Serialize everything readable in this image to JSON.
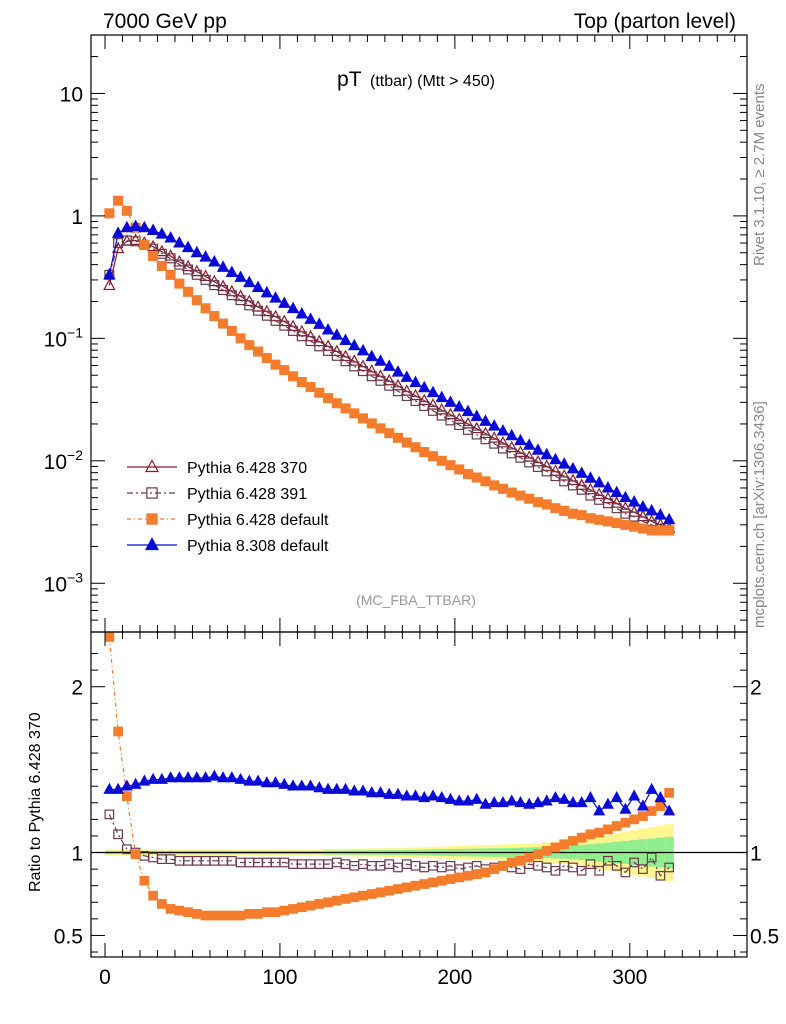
{
  "header": {
    "energy_label": "7000 GeV pp",
    "process_label": "Top (parton level)"
  },
  "side": {
    "rivet_label": "Rivet 3.1.10, ≥ 2.7M events",
    "mcplots_label": "mcplots.cern.ch [arXiv:1306.3436]"
  },
  "colors": {
    "p370": "#8b1a2b",
    "p391": "#6b3a4e",
    "pdef": "#f47c2c",
    "p8": "#0a0ad8",
    "band_green": "#90ee90",
    "band_yellow": "#fff68f"
  },
  "chart_data": [
    {
      "type": "line",
      "title_main": "pT",
      "title_sub": "(ttbar) (Mtt > 450)",
      "watermark": "(MC_FBA_TTBAR)",
      "yscale": "log",
      "xlim": [
        -8,
        367
      ],
      "ylim": [
        0.0004,
        30
      ],
      "y_ticks": [
        {
          "value": 10,
          "label": "10"
        },
        {
          "value": 1,
          "label": "1"
        },
        {
          "value": 0.1,
          "base": "10",
          "exp": "−1"
        },
        {
          "value": 0.01,
          "base": "10",
          "exp": "−2"
        },
        {
          "value": 0.001,
          "base": "10",
          "exp": "−3"
        }
      ],
      "legend_position": "bottom-left",
      "legend": [
        {
          "key": "p370",
          "label": "Pythia 6.428 370"
        },
        {
          "key": "p391",
          "label": "Pythia 6.428 391"
        },
        {
          "key": "pdef",
          "label": "Pythia 6.428 default"
        },
        {
          "key": "p8",
          "label": "Pythia 8.308 default"
        }
      ],
      "series": [
        {
          "key": "p370",
          "name": "Pythia 6.428 370",
          "x_start": 2.5,
          "x_step": 5,
          "values": [
            0.27,
            0.54,
            0.62,
            0.63,
            0.6,
            0.56,
            0.51,
            0.47,
            0.42,
            0.385,
            0.35,
            0.32,
            0.29,
            0.265,
            0.24,
            0.22,
            0.2,
            0.18,
            0.165,
            0.15,
            0.137,
            0.125,
            0.113,
            0.103,
            0.094,
            0.086,
            0.078,
            0.071,
            0.065,
            0.059,
            0.054,
            0.049,
            0.045,
            0.041,
            0.037,
            0.034,
            0.031,
            0.0285,
            0.026,
            0.0238,
            0.0218,
            0.02,
            0.0183,
            0.0167,
            0.0153,
            0.014,
            0.0128,
            0.0117,
            0.0107,
            0.0098,
            0.009,
            0.0082,
            0.0075,
            0.0069,
            0.0063,
            0.0058,
            0.0053,
            0.0049,
            0.0045,
            0.0041,
            0.0038,
            0.0035,
            0.0032,
            0.003,
            0.0028
          ]
        },
        {
          "key": "p391",
          "name": "Pythia 6.428 391",
          "x_start": 2.5,
          "x_step": 5,
          "values": [
            0.33,
            0.6,
            0.63,
            0.62,
            0.58,
            0.54,
            0.49,
            0.45,
            0.4,
            0.365,
            0.33,
            0.3,
            0.272,
            0.248,
            0.225,
            0.205,
            0.186,
            0.168,
            0.153,
            0.139,
            0.127,
            0.115,
            0.104,
            0.095,
            0.086,
            0.079,
            0.072,
            0.065,
            0.059,
            0.054,
            0.049,
            0.045,
            0.041,
            0.037,
            0.0338,
            0.0308,
            0.028,
            0.0256,
            0.0234,
            0.0214,
            0.0196,
            0.0179,
            0.0164,
            0.015,
            0.0138,
            0.0126,
            0.0115,
            0.0106,
            0.0097,
            0.0089,
            0.0082,
            0.0075,
            0.0068,
            0.0063,
            0.0058,
            0.0052,
            0.0048,
            0.0045,
            0.0041,
            0.0037,
            0.0035,
            0.0032,
            0.003,
            0.0028,
            0.0027
          ]
        },
        {
          "key": "pdef",
          "name": "Pythia 6.428 default",
          "x_start": 2.5,
          "x_step": 5,
          "values": [
            1.05,
            1.33,
            1.1,
            0.8,
            0.58,
            0.47,
            0.39,
            0.33,
            0.28,
            0.24,
            0.205,
            0.176,
            0.152,
            0.132,
            0.115,
            0.1,
            0.088,
            0.078,
            0.069,
            0.061,
            0.055,
            0.049,
            0.044,
            0.04,
            0.036,
            0.0325,
            0.0295,
            0.0268,
            0.0244,
            0.0222,
            0.0202,
            0.0184,
            0.0168,
            0.0154,
            0.0141,
            0.0129,
            0.0118,
            0.0109,
            0.01,
            0.0092,
            0.0085,
            0.0078,
            0.0073,
            0.0068,
            0.0063,
            0.0059,
            0.0055,
            0.0052,
            0.0049,
            0.0046,
            0.0044,
            0.0041,
            0.0039,
            0.0037,
            0.0036,
            0.0034,
            0.0033,
            0.0032,
            0.0031,
            0.003,
            0.0029,
            0.0028,
            0.0027,
            0.0027,
            0.0027
          ]
        },
        {
          "key": "p8",
          "name": "Pythia 8.308 default",
          "x_start": 2.5,
          "x_step": 5,
          "values": [
            0.33,
            0.72,
            0.8,
            0.82,
            0.8,
            0.76,
            0.71,
            0.66,
            0.6,
            0.55,
            0.5,
            0.46,
            0.42,
            0.38,
            0.345,
            0.315,
            0.285,
            0.26,
            0.235,
            0.213,
            0.193,
            0.175,
            0.158,
            0.143,
            0.13,
            0.117,
            0.106,
            0.096,
            0.087,
            0.079,
            0.071,
            0.065,
            0.059,
            0.053,
            0.048,
            0.0435,
            0.0395,
            0.036,
            0.0328,
            0.03,
            0.0275,
            0.0252,
            0.023,
            0.021,
            0.0192,
            0.0175,
            0.016,
            0.0146,
            0.0134,
            0.0122,
            0.0112,
            0.0102,
            0.0094,
            0.0086,
            0.0079,
            0.0072,
            0.0066,
            0.006,
            0.0055,
            0.005,
            0.0046,
            0.0042,
            0.0039,
            0.0036,
            0.0033
          ]
        }
      ]
    },
    {
      "type": "line",
      "ylabel": "Ratio to Pythia 6.428 370",
      "xlim": [
        -8,
        367
      ],
      "ylim": [
        0.37,
        2.33
      ],
      "x_ticks": [
        0,
        100,
        200,
        300
      ],
      "y_ticks": [
        {
          "value": 2,
          "label": "2"
        },
        {
          "value": 1,
          "label": "1"
        },
        {
          "value": 0.5,
          "label": "0.5"
        }
      ],
      "reference_line": 1,
      "uncertainty_band": {
        "key": "p370",
        "x_start": 0,
        "x_step": 5,
        "half_width": [
          0.01,
          0.01,
          0.01,
          0.01,
          0.01,
          0.01,
          0.01,
          0.01,
          0.01,
          0.01,
          0.01,
          0.01,
          0.01,
          0.01,
          0.01,
          0.01,
          0.01,
          0.01,
          0.01,
          0.01,
          0.01,
          0.01,
          0.01,
          0.01,
          0.01,
          0.012,
          0.012,
          0.012,
          0.013,
          0.013,
          0.014,
          0.014,
          0.015,
          0.015,
          0.016,
          0.017,
          0.018,
          0.019,
          0.02,
          0.021,
          0.022,
          0.023,
          0.024,
          0.025,
          0.026,
          0.027,
          0.028,
          0.029,
          0.03,
          0.032,
          0.034,
          0.036,
          0.038,
          0.04,
          0.045,
          0.05,
          0.055,
          0.06,
          0.065,
          0.07,
          0.075,
          0.08,
          0.085,
          0.09,
          0.095
        ]
      },
      "series": [
        {
          "key": "p370",
          "name": "Pythia 6.428 370",
          "x_start": 2.5,
          "x_step": 5,
          "values": [
            1,
            1,
            1,
            1,
            1,
            1,
            1,
            1,
            1,
            1,
            1,
            1,
            1,
            1,
            1,
            1,
            1,
            1,
            1,
            1,
            1,
            1,
            1,
            1,
            1,
            1,
            1,
            1,
            1,
            1,
            1,
            1,
            1,
            1,
            1,
            1,
            1,
            1,
            1,
            1,
            1,
            1,
            1,
            1,
            1,
            1,
            1,
            1,
            1,
            1,
            1,
            1,
            1,
            1,
            1,
            1,
            1,
            1,
            1,
            1,
            1,
            1,
            1,
            1,
            1
          ]
        },
        {
          "key": "p391",
          "name": "Pythia 6.428 391",
          "x_start": 2.5,
          "x_step": 5,
          "values": [
            1.23,
            1.11,
            1.02,
            1.0,
            0.98,
            0.97,
            0.96,
            0.96,
            0.95,
            0.95,
            0.95,
            0.95,
            0.95,
            0.95,
            0.95,
            0.94,
            0.94,
            0.94,
            0.94,
            0.94,
            0.94,
            0.93,
            0.93,
            0.93,
            0.93,
            0.93,
            0.94,
            0.93,
            0.92,
            0.93,
            0.92,
            0.92,
            0.93,
            0.91,
            0.93,
            0.92,
            0.91,
            0.92,
            0.91,
            0.92,
            0.9,
            0.91,
            0.92,
            0.9,
            0.91,
            0.92,
            0.91,
            0.9,
            0.93,
            0.92,
            0.91,
            0.89,
            0.92,
            0.91,
            0.89,
            0.93,
            0.89,
            0.95,
            0.92,
            0.88,
            0.94,
            0.9,
            0.97,
            0.86,
            0.91
          ]
        },
        {
          "key": "pdef",
          "name": "Pythia 6.428 default",
          "x_start": 2.5,
          "x_step": 5,
          "values": [
            2.3,
            1.73,
            1.34,
            0.99,
            0.83,
            0.74,
            0.69,
            0.66,
            0.65,
            0.64,
            0.63,
            0.62,
            0.62,
            0.62,
            0.62,
            0.62,
            0.63,
            0.63,
            0.64,
            0.64,
            0.65,
            0.66,
            0.67,
            0.68,
            0.69,
            0.7,
            0.71,
            0.72,
            0.73,
            0.74,
            0.75,
            0.76,
            0.77,
            0.78,
            0.79,
            0.8,
            0.81,
            0.82,
            0.83,
            0.84,
            0.85,
            0.86,
            0.87,
            0.88,
            0.9,
            0.92,
            0.94,
            0.95,
            0.97,
            0.99,
            1.01,
            1.03,
            1.05,
            1.07,
            1.09,
            1.11,
            1.12,
            1.14,
            1.16,
            1.18,
            1.2,
            1.22,
            1.25,
            1.28,
            1.36
          ]
        },
        {
          "key": "p8",
          "name": "Pythia 8.308 default",
          "x_start": 2.5,
          "x_step": 5,
          "values": [
            1.38,
            1.38,
            1.4,
            1.41,
            1.43,
            1.44,
            1.44,
            1.45,
            1.45,
            1.45,
            1.45,
            1.45,
            1.46,
            1.45,
            1.45,
            1.44,
            1.43,
            1.43,
            1.42,
            1.42,
            1.41,
            1.4,
            1.4,
            1.4,
            1.39,
            1.38,
            1.38,
            1.38,
            1.37,
            1.37,
            1.36,
            1.36,
            1.35,
            1.35,
            1.34,
            1.34,
            1.33,
            1.34,
            1.33,
            1.32,
            1.31,
            1.31,
            1.32,
            1.29,
            1.3,
            1.3,
            1.31,
            1.3,
            1.29,
            1.3,
            1.31,
            1.33,
            1.32,
            1.3,
            1.3,
            1.33,
            1.25,
            1.29,
            1.33,
            1.26,
            1.34,
            1.28,
            1.38,
            1.33,
            1.25
          ]
        }
      ]
    }
  ]
}
